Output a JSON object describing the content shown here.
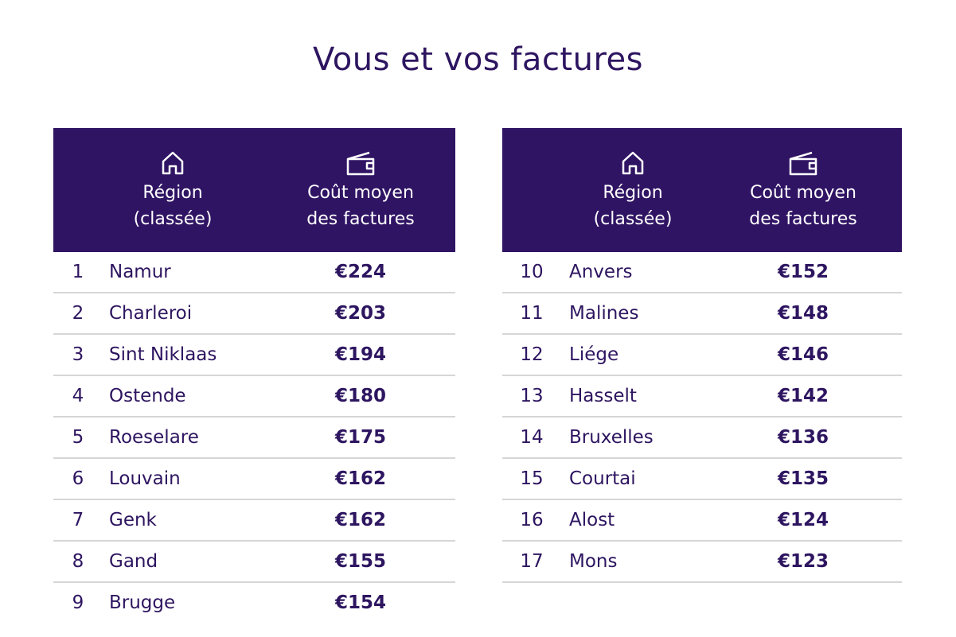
{
  "title": "Vous et vos factures",
  "header": {
    "region_line1": "Région",
    "region_line2": "(classée)",
    "cost_line1": "Coût moyen",
    "cost_line2": "des factures",
    "icons": [
      "house-icon",
      "wallet-icon"
    ]
  },
  "colors": {
    "header_bg": "#301464",
    "text": "#2d1560",
    "divider": "#d6d6d6"
  },
  "left": [
    {
      "rank": "1",
      "region": "Namur",
      "cost": "€224"
    },
    {
      "rank": "2",
      "region": "Charleroi",
      "cost": "€203"
    },
    {
      "rank": "3",
      "region": "Sint Niklaas",
      "cost": "€194"
    },
    {
      "rank": "4",
      "region": "Ostende",
      "cost": "€180"
    },
    {
      "rank": "5",
      "region": "Roeselare",
      "cost": "€175"
    },
    {
      "rank": "6",
      "region": "Louvain",
      "cost": "€162"
    },
    {
      "rank": "7",
      "region": "Genk",
      "cost": "€162"
    },
    {
      "rank": "8",
      "region": "Gand",
      "cost": "€155"
    },
    {
      "rank": "9",
      "region": "Brugge",
      "cost": "€154"
    }
  ],
  "right": [
    {
      "rank": "10",
      "region": "Anvers",
      "cost": "€152"
    },
    {
      "rank": "11",
      "region": "Malines",
      "cost": "€148"
    },
    {
      "rank": "12",
      "region": "Liége",
      "cost": "€146"
    },
    {
      "rank": "13",
      "region": "Hasselt",
      "cost": "€142"
    },
    {
      "rank": "14",
      "region": "Bruxelles",
      "cost": "€136"
    },
    {
      "rank": "15",
      "region": "Courtai",
      "cost": "€135"
    },
    {
      "rank": "16",
      "region": "Alost",
      "cost": "€124"
    },
    {
      "rank": "17",
      "region": "Mons",
      "cost": "€123"
    }
  ]
}
